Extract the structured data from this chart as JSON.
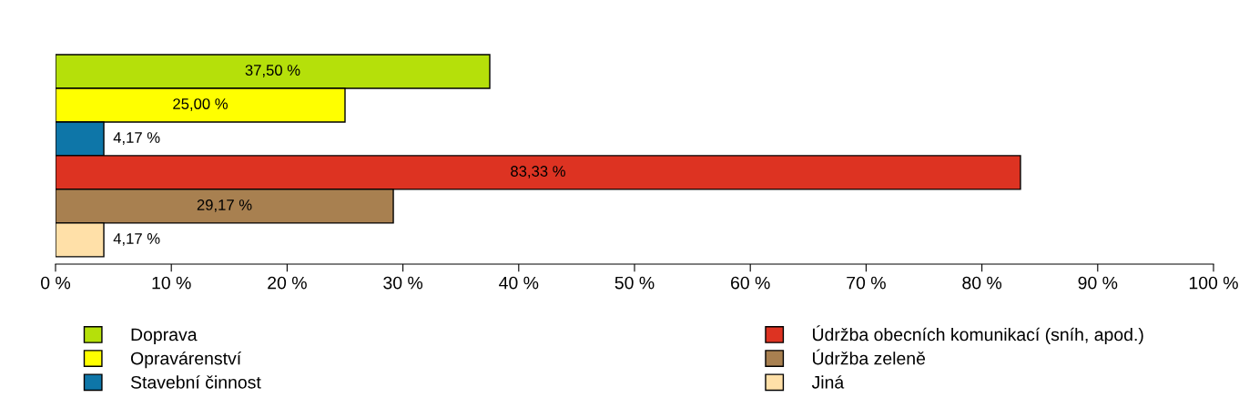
{
  "chart_data": {
    "type": "bar",
    "orientation": "horizontal",
    "categories": [
      null
    ],
    "series": [
      {
        "name": "Doprava",
        "color": "#b5e00a",
        "values": [
          37.5
        ],
        "value_labels": [
          "37,50 %"
        ]
      },
      {
        "name": "Opravárenství",
        "color": "#ffff00",
        "values": [
          25.0
        ],
        "value_labels": [
          "25,00 %"
        ]
      },
      {
        "name": "Stavební činnost",
        "color": "#0e76a8",
        "values": [
          4.17
        ],
        "value_labels": [
          "4,17 %"
        ]
      },
      {
        "name": "Údržba obecních komunikací (sníh, apod.)",
        "color": "#dd3322",
        "values": [
          83.33
        ],
        "value_labels": [
          "83,33 %"
        ]
      },
      {
        "name": "Údržba zeleně",
        "color": "#a88050",
        "values": [
          29.17
        ],
        "value_labels": [
          "29,17 %"
        ]
      },
      {
        "name": "Jiná",
        "color": "#ffe0a8",
        "values": [
          4.17
        ],
        "value_labels": [
          "4,17 %"
        ]
      }
    ],
    "xlim": [
      0,
      100
    ],
    "xticks": [
      {
        "value": 0,
        "label": "0 %"
      },
      {
        "value": 10,
        "label": "10 %"
      },
      {
        "value": 20,
        "label": "20 %"
      },
      {
        "value": 30,
        "label": "30 %"
      },
      {
        "value": 40,
        "label": "40 %"
      },
      {
        "value": 50,
        "label": "50 %"
      },
      {
        "value": 60,
        "label": "60 %"
      },
      {
        "value": 70,
        "label": "70 %"
      },
      {
        "value": 80,
        "label": "80 %"
      },
      {
        "value": 90,
        "label": "90 %"
      },
      {
        "value": 100,
        "label": "100 %"
      }
    ],
    "grid": false,
    "legend": "bottom",
    "tick_labels": "x"
  }
}
